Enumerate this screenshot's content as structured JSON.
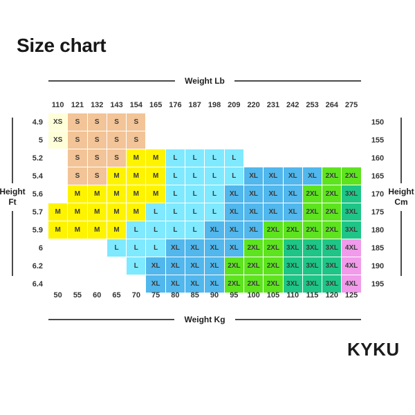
{
  "title": "Size chart",
  "brand": "KYKU",
  "axis": {
    "top": "Weight Lb",
    "bottom": "Weight Kg",
    "left": [
      "Height",
      "Ft"
    ],
    "right": [
      "Height",
      "Cm"
    ]
  },
  "chart_data": {
    "type": "heatmap",
    "title": "Size chart",
    "x_top_label": "Weight Lb",
    "x_bottom_label": "Weight Kg",
    "y_left_label": "Height Ft",
    "y_right_label": "Height Cm",
    "weight_lb": [
      "110",
      "121",
      "132",
      "143",
      "154",
      "165",
      "176",
      "187",
      "198",
      "209",
      "220",
      "231",
      "242",
      "253",
      "264",
      "275"
    ],
    "weight_kg": [
      "50",
      "55",
      "60",
      "65",
      "70",
      "75",
      "80",
      "85",
      "90",
      "95",
      "100",
      "105",
      "110",
      "115",
      "120",
      "125"
    ],
    "height_ft": [
      "4.9",
      "5",
      "5.2",
      "5.4",
      "5.6",
      "5.7",
      "5.9",
      "6",
      "6.2",
      "6.4"
    ],
    "height_cm": [
      "150",
      "155",
      "160",
      "165",
      "170",
      "175",
      "180",
      "185",
      "190",
      "195"
    ],
    "sizes": [
      "XS",
      "S",
      "M",
      "L",
      "XL",
      "2XL",
      "3XL",
      "4XL"
    ],
    "size_colors": {
      "XS": "#FEFFD8",
      "S": "#F2C497",
      "M": "#FFF400",
      "L": "#7FE9FF",
      "XL": "#51B7EC",
      "2XL": "#5EE31F",
      "3XL": "#1EC586",
      "4XL": "#F19BEA"
    },
    "cells": [
      [
        "XS",
        "S",
        "S",
        "S",
        "S",
        "",
        "",
        "",
        "",
        "",
        "",
        "",
        "",
        "",
        "",
        ""
      ],
      [
        "XS",
        "S",
        "S",
        "S",
        "S",
        "",
        "",
        "",
        "",
        "",
        "",
        "",
        "",
        "",
        "",
        ""
      ],
      [
        "",
        "S",
        "S",
        "S",
        "M",
        "M",
        "L",
        "L",
        "L",
        "L",
        "",
        "",
        "",
        "",
        "",
        ""
      ],
      [
        "",
        "S",
        "S",
        "M",
        "M",
        "M",
        "L",
        "L",
        "L",
        "L",
        "XL",
        "XL",
        "XL",
        "XL",
        "2XL",
        "2XL"
      ],
      [
        "",
        "M",
        "M",
        "M",
        "M",
        "M",
        "L",
        "L",
        "L",
        "XL",
        "XL",
        "XL",
        "XL",
        "2XL",
        "2XL",
        "3XL"
      ],
      [
        "M",
        "M",
        "M",
        "M",
        "M",
        "L",
        "L",
        "L",
        "L",
        "XL",
        "XL",
        "XL",
        "XL",
        "2XL",
        "2XL",
        "3XL"
      ],
      [
        "M",
        "M",
        "M",
        "M",
        "L",
        "L",
        "L",
        "L",
        "XL",
        "XL",
        "XL",
        "2XL",
        "2XL",
        "2XL",
        "2XL",
        "3XL"
      ],
      [
        "",
        "",
        "",
        "L",
        "L",
        "L",
        "XL",
        "XL",
        "XL",
        "XL",
        "2XL",
        "2XL",
        "3XL",
        "3XL",
        "3XL",
        "4XL"
      ],
      [
        "",
        "",
        "",
        "",
        "L",
        "XL",
        "XL",
        "XL",
        "XL",
        "2XL",
        "2XL",
        "2XL",
        "3XL",
        "3XL",
        "3XL",
        "4XL"
      ],
      [
        "",
        "",
        "",
        "",
        "",
        "XL",
        "XL",
        "XL",
        "XL",
        "2XL",
        "2XL",
        "2XL",
        "3XL",
        "3XL",
        "3XL",
        "4XL"
      ]
    ]
  }
}
